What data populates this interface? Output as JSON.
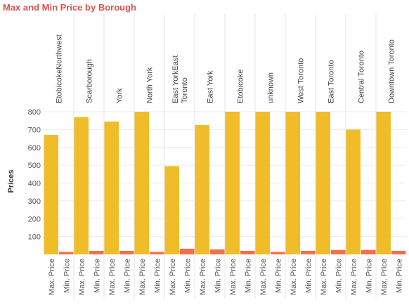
{
  "chart_data": {
    "type": "bar",
    "title": "Max and Min Price by Borough",
    "ylabel": "Prices",
    "xlabel": "",
    "ylim": [
      0,
      800
    ],
    "yticks": [
      100,
      200,
      300,
      400,
      500,
      600,
      700,
      800
    ],
    "grid": true,
    "categories": [
      "EtobicokeNorthwest",
      "Scarborough",
      "York",
      "North York",
      "East YorkEast Toronto",
      "East York",
      "Etobicoke",
      "unknown",
      "West Toronto",
      "East Toronto",
      "Central Toronto",
      "Downtown Toronto"
    ],
    "category_label_lines": [
      [
        "EtobicokeNorthwest"
      ],
      [
        "Scarborough"
      ],
      [
        "York"
      ],
      [
        "North York"
      ],
      [
        "East YorkEast",
        "Toronto"
      ],
      [
        "East York"
      ],
      [
        "Etobicoke"
      ],
      [
        "unknown"
      ],
      [
        "West Toronto"
      ],
      [
        "East Toronto"
      ],
      [
        "Central Toronto"
      ],
      [
        "Downtown Toronto"
      ]
    ],
    "series": [
      {
        "name": "Max. Price",
        "color": "#f0bc2a",
        "values": [
          670,
          770,
          745,
          800,
          495,
          725,
          800,
          800,
          800,
          800,
          700,
          800
        ]
      },
      {
        "name": "Min. Price",
        "color": "#f46f4c",
        "values": [
          14,
          20,
          20,
          14,
          32,
          28,
          20,
          14,
          20,
          25,
          25,
          20
        ]
      }
    ]
  },
  "colors": {
    "title": "#d9534f",
    "max_bar": "#f0bc2a",
    "min_bar": "#f46f4c"
  }
}
